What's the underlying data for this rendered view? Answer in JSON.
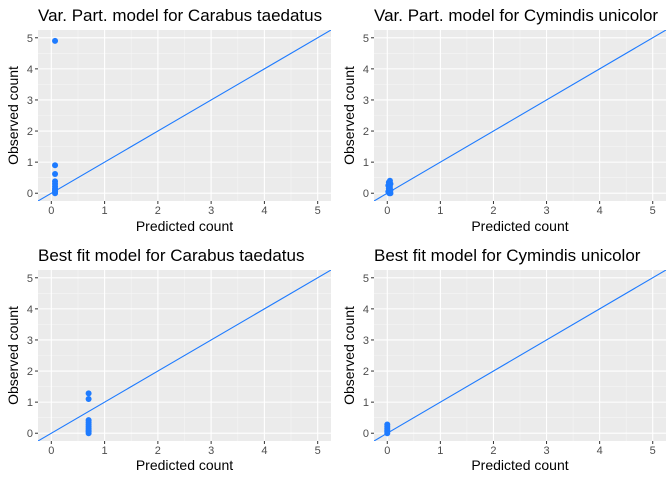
{
  "chart_data": [
    {
      "type": "scatter",
      "title": "Var. Part. model for Carabus taedatus",
      "xlabel": "Predicted count",
      "ylabel": "Observed count",
      "xlim": [
        -0.25,
        5.25
      ],
      "ylim": [
        -0.25,
        5.25
      ],
      "xticks": [
        0,
        1,
        2,
        3,
        4,
        5
      ],
      "yticks": [
        0,
        1,
        2,
        3,
        4,
        5
      ],
      "reference_line": "y = x",
      "grid": true,
      "points": [
        [
          0.07,
          4.9
        ],
        [
          0.07,
          0.9
        ],
        [
          0.07,
          0.62
        ],
        [
          0.07,
          0.38
        ],
        [
          0.07,
          0.3
        ],
        [
          0.07,
          0.22
        ],
        [
          0.07,
          0.15
        ],
        [
          0.07,
          0.1
        ],
        [
          0.07,
          0.05
        ],
        [
          0.07,
          0.0
        ]
      ]
    },
    {
      "type": "scatter",
      "title": "Var. Part. model for Cymindis unicolor",
      "xlabel": "Predicted count",
      "ylabel": "Observed count",
      "xlim": [
        -0.25,
        5.25
      ],
      "ylim": [
        -0.25,
        5.25
      ],
      "xticks": [
        0,
        1,
        2,
        3,
        4,
        5
      ],
      "yticks": [
        0,
        1,
        2,
        3,
        4,
        5
      ],
      "reference_line": "y = x",
      "grid": true,
      "points": [
        [
          0.05,
          0.4
        ],
        [
          0.03,
          0.35
        ],
        [
          0.06,
          0.3
        ],
        [
          0.02,
          0.25
        ],
        [
          0.05,
          0.2
        ],
        [
          0.03,
          0.15
        ],
        [
          0.06,
          0.1
        ],
        [
          0.02,
          0.05
        ],
        [
          0.04,
          0.0
        ],
        [
          0.06,
          0.0
        ]
      ]
    },
    {
      "type": "scatter",
      "title": "Best fit model for Carabus taedatus",
      "xlabel": "Predicted count",
      "ylabel": "Observed count",
      "xlim": [
        -0.25,
        5.25
      ],
      "ylim": [
        -0.25,
        5.25
      ],
      "xticks": [
        0,
        1,
        2,
        3,
        4,
        5
      ],
      "yticks": [
        0,
        1,
        2,
        3,
        4,
        5
      ],
      "reference_line": "y = x",
      "grid": true,
      "points": [
        [
          0.7,
          1.28
        ],
        [
          0.7,
          1.1
        ],
        [
          0.7,
          0.42
        ],
        [
          0.7,
          0.35
        ],
        [
          0.7,
          0.28
        ],
        [
          0.7,
          0.22
        ],
        [
          0.7,
          0.16
        ],
        [
          0.7,
          0.1
        ],
        [
          0.7,
          0.05
        ],
        [
          0.7,
          0.0
        ]
      ]
    },
    {
      "type": "scatter",
      "title": "Best fit model for Cymindis unicolor",
      "xlabel": "Predicted count",
      "ylabel": "Observed count",
      "xlim": [
        -0.25,
        5.25
      ],
      "ylim": [
        -0.25,
        5.25
      ],
      "xticks": [
        0,
        1,
        2,
        3,
        4,
        5
      ],
      "yticks": [
        0,
        1,
        2,
        3,
        4,
        5
      ],
      "reference_line": "y = x",
      "grid": true,
      "points": [
        [
          0.0,
          0.28
        ],
        [
          0.0,
          0.22
        ],
        [
          0.0,
          0.16
        ],
        [
          0.0,
          0.1
        ],
        [
          0.0,
          0.05
        ],
        [
          0.0,
          0.0
        ]
      ]
    }
  ],
  "colors": {
    "point": "#1E7BFF",
    "line": "#1E7BFF",
    "panel_background": "#EBEBEB",
    "grid_major": "#FFFFFF",
    "grid_minor": "#F5F5F5",
    "tick_label": "#4D4D4D",
    "tick_mark": "#333333"
  }
}
